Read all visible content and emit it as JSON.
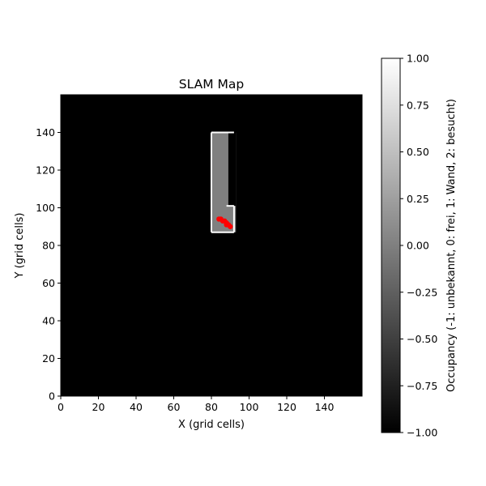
{
  "chart_data": {
    "type": "heatmap",
    "title": "SLAM Map",
    "xlabel": "X (grid cells)",
    "ylabel": "Y (grid cells)",
    "xlim": [
      0,
      160
    ],
    "ylim": [
      0,
      160
    ],
    "xticks": [
      0,
      20,
      40,
      60,
      80,
      100,
      120,
      140
    ],
    "yticks": [
      0,
      20,
      40,
      60,
      80,
      100,
      120,
      140
    ],
    "grid": false,
    "colormap": "gray",
    "color_range": [
      -1.0,
      1.0
    ],
    "colorbar": {
      "label": "Occupancy (-1: unbekannt, 0: frei, 1: Wand, 2: besucht)",
      "ticks": [
        "1.00",
        "0.75",
        "0.50",
        "0.25",
        "0.00",
        "−0.25",
        "−0.50",
        "−0.75",
        "−1.00"
      ],
      "tick_values": [
        1.0,
        0.75,
        0.5,
        0.25,
        0.0,
        -0.25,
        -0.5,
        -0.75,
        -1.0
      ],
      "placement": "right"
    },
    "background_value": -1,
    "free_region": {
      "value": 0,
      "x_range": [
        80,
        93
      ],
      "y_range": [
        87,
        140
      ]
    },
    "walls": {
      "value": 1,
      "segments": [
        {
          "from": [
            80,
            140
          ],
          "to": [
            92,
            140
          ]
        },
        {
          "from": [
            80,
            87
          ],
          "to": [
            80,
            140
          ]
        },
        {
          "from": [
            80,
            87
          ],
          "to": [
            92,
            87
          ]
        },
        {
          "from": [
            92,
            87
          ],
          "to": [
            92,
            101
          ]
        },
        {
          "from": [
            88,
            101
          ],
          "to": [
            92,
            101
          ]
        }
      ]
    },
    "visited_path": {
      "value": 2,
      "color": "#ff0000",
      "points": [
        [
          84,
          94
        ],
        [
          85,
          94
        ],
        [
          86,
          93
        ],
        [
          87,
          93
        ],
        [
          88,
          92
        ],
        [
          88,
          91
        ],
        [
          89,
          91
        ],
        [
          90,
          90
        ]
      ]
    }
  }
}
